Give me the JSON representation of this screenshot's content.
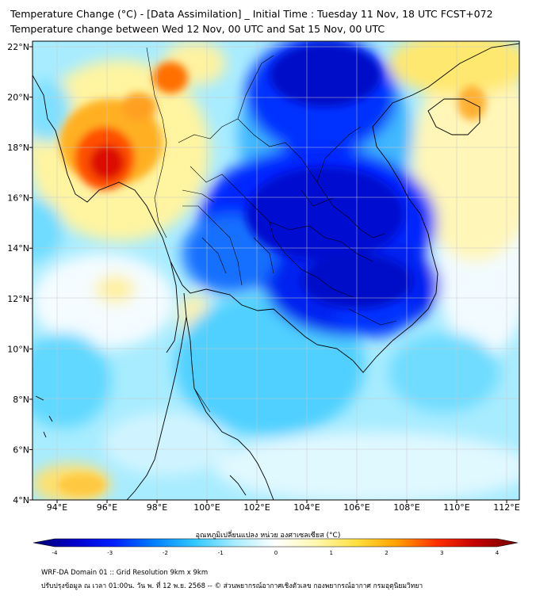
{
  "title_line1": "Temperature Change (°C) - [Data Assimilation] _ Initial Time : Tuesday 11 Nov, 18 UTC FCST+072",
  "title_line2": "Temperature change between Wed 12 Nov, 00 UTC and Sat 15 Nov, 00 UTC",
  "lat_ticks": [
    "22°N",
    "20°N",
    "18°N",
    "16°N",
    "14°N",
    "12°N",
    "10°N",
    "8°N",
    "6°N",
    "4°N"
  ],
  "lon_ticks": [
    "94°E",
    "96°E",
    "98°E",
    "100°E",
    "102°E",
    "104°E",
    "106°E",
    "108°E",
    "110°E",
    "112°E"
  ],
  "colorbar": {
    "label": "อุณหภูมิเปลี่ยนแปลง หน่วย องศาเซลเซียส (°C)",
    "ticks": [
      "-4",
      "-3",
      "-2",
      "-1",
      "0",
      "1",
      "2",
      "3",
      "4"
    ],
    "colors": [
      "#000070",
      "#0000c8",
      "#0020ff",
      "#0080ff",
      "#30c8ff",
      "#a8ecff",
      "#ffffff",
      "#fff8b0",
      "#ffe040",
      "#ffa000",
      "#ff3000",
      "#c00000",
      "#700000"
    ]
  },
  "footer_line1": "WRF-DA Domain 01 :: Grid Resolution 9km x 9km",
  "footer_line2": "ปรับปรุงข้อมูล ณ เวลา 01:00น. วัน พ. ที่ 12 พ.ย. 2568 -- © ส่วนพยากรณ์อากาศเชิงตัวเลข กองพยากรณ์อากาศ กรมอุตุนิยมวิทยา"
}
